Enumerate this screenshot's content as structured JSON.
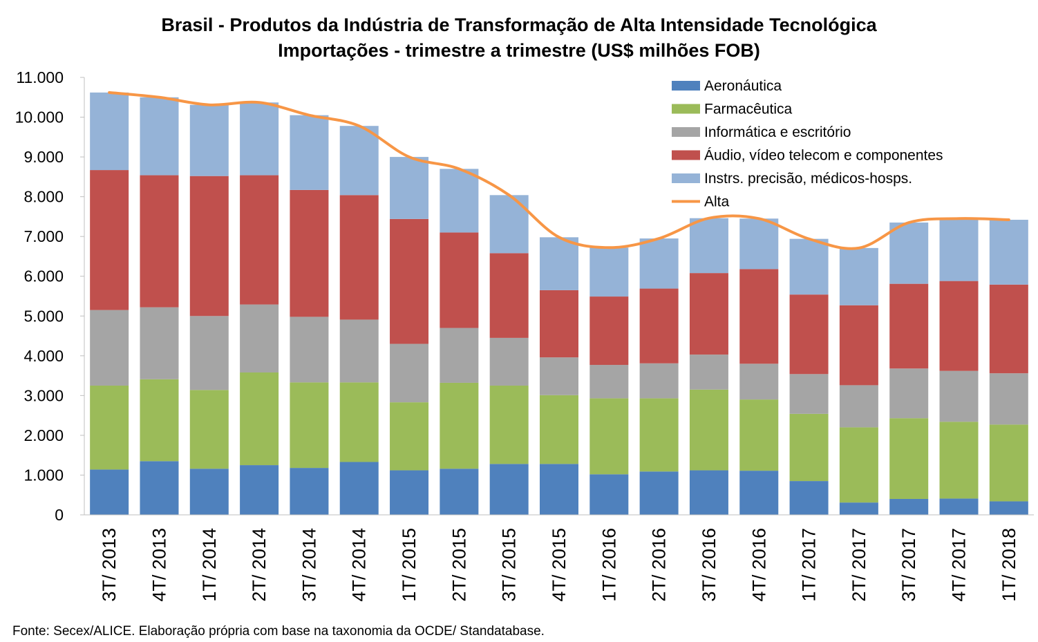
{
  "chart_data": {
    "type": "bar",
    "stacked": true,
    "title": "Brasil - Produtos da Indústria de Transformação de Alta Intensidade Tecnológica",
    "subtitle": "Importações - trimestre a trimestre (US$ milhões FOB)",
    "xlabel": "",
    "ylabel": "",
    "ylim": [
      0,
      11000
    ],
    "yticks": [
      "0",
      "1.000",
      "2.000",
      "3.000",
      "4.000",
      "5.000",
      "6.000",
      "7.000",
      "8.000",
      "9.000",
      "10.000",
      "11.000"
    ],
    "grid": false,
    "legend_position": "top-right",
    "categories": [
      "3T/ 2013",
      "4T/ 2013",
      "1T/ 2014",
      "2T/ 2014",
      "3T/ 2014",
      "4T/ 2014",
      "1T/ 2015",
      "2T/ 2015",
      "3T/ 2015",
      "4T/ 2015",
      "1T/ 2016",
      "2T/ 2016",
      "3T/ 2016",
      "4T/ 2016",
      "1T/ 2017",
      "2T/ 2017",
      "3T/ 2017",
      "4T/ 2017",
      "1T/ 2018"
    ],
    "series": [
      {
        "name": "Aeronáutica",
        "color": "#4F81BD",
        "values": [
          1140,
          1350,
          1160,
          1250,
          1180,
          1330,
          1120,
          1160,
          1280,
          1280,
          1020,
          1090,
          1120,
          1110,
          850,
          310,
          400,
          410,
          340
        ]
      },
      {
        "name": "Farmacêutica",
        "color": "#9BBB59",
        "values": [
          2110,
          2060,
          1980,
          2330,
          2150,
          2000,
          1710,
          2160,
          1970,
          1730,
          1910,
          1840,
          2030,
          1790,
          1690,
          1890,
          2030,
          1930,
          1930
        ]
      },
      {
        "name": "Informática e escritório",
        "color": "#A5A5A5",
        "values": [
          1900,
          1810,
          1860,
          1710,
          1650,
          1580,
          1470,
          1380,
          1200,
          950,
          840,
          880,
          880,
          900,
          1000,
          1060,
          1250,
          1280,
          1290
        ]
      },
      {
        "name": "Áudio, vídeo telecom e componentes",
        "color": "#C0504D",
        "values": [
          3520,
          3320,
          3520,
          3250,
          3190,
          3130,
          3140,
          2400,
          2130,
          1690,
          1720,
          1880,
          2050,
          2380,
          2000,
          2010,
          2130,
          2260,
          2230
        ]
      },
      {
        "name": "Instrs. precisão, médicos-hosps.",
        "color": "#95B3D7",
        "values": [
          1950,
          1960,
          1790,
          1830,
          1880,
          1740,
          1560,
          1600,
          1460,
          1330,
          1230,
          1260,
          1380,
          1270,
          1400,
          1440,
          1540,
          1570,
          1630
        ]
      }
    ],
    "line_series": {
      "name": "Alta",
      "color": "#F79646",
      "values": [
        10620,
        10500,
        10310,
        10370,
        10050,
        9780,
        9000,
        8700,
        8040,
        6980,
        6720,
        6950,
        7460,
        7450,
        6940,
        6710,
        7350,
        7450,
        7420
      ]
    }
  },
  "source_note": "Fonte: Secex/ALICE. Elaboração própria com base na taxonomia da OCDE/ Standatabase."
}
